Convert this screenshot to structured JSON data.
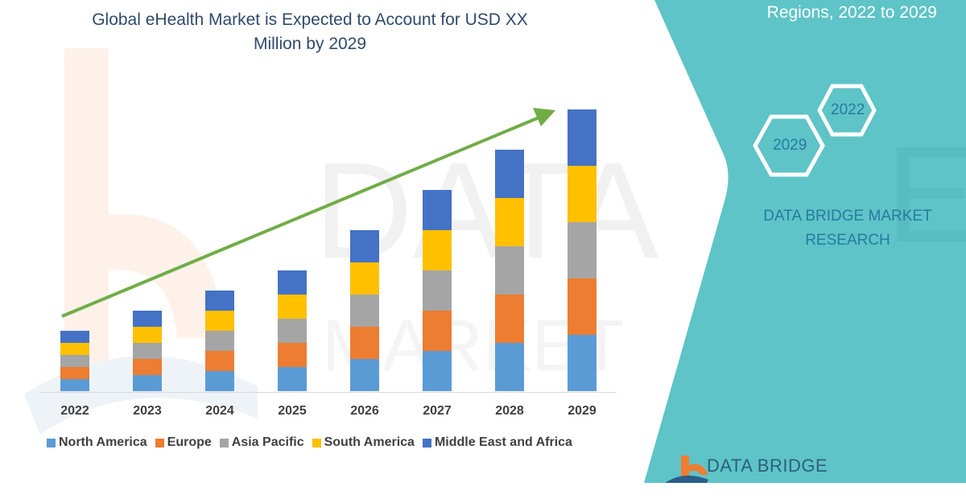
{
  "header": {
    "title_line1": "Global eHealth Market is Expected to Account for USD XX",
    "title_line2": "Million by 2029",
    "right_heading": "Regions, 2022 to 2029"
  },
  "hexagons": {
    "left_label": "2029",
    "right_label": "2022"
  },
  "brand": {
    "name_line1": "DATA BRIDGE MARKET",
    "name_line2": "RESEARCH",
    "logo_text": "DATA BRIDGE"
  },
  "colors": {
    "teal": "#5ec4c8",
    "north_america": "#5b9bd5",
    "europe": "#ed7d31",
    "asia_pacific": "#a5a5a5",
    "south_america": "#ffc000",
    "middle_east_africa": "#4472c4",
    "arrow": "#70ad47"
  },
  "legend": [
    {
      "label": "North America",
      "color": "#5b9bd5"
    },
    {
      "label": "Europe",
      "color": "#ed7d31"
    },
    {
      "label": "Asia Pacific",
      "color": "#a5a5a5"
    },
    {
      "label": "South America",
      "color": "#ffc000"
    },
    {
      "label": "Middle East and Africa",
      "color": "#4472c4"
    }
  ],
  "chart_data": {
    "type": "bar",
    "stacked": true,
    "title": "Global eHealth Market is Expected to Account for USD XX Million by 2029",
    "xlabel": "",
    "ylabel": "",
    "categories": [
      "2022",
      "2023",
      "2024",
      "2025",
      "2026",
      "2027",
      "2028",
      "2029"
    ],
    "series": [
      {
        "name": "North America",
        "values": [
          15,
          20,
          25,
          30,
          40,
          50,
          60,
          70
        ]
      },
      {
        "name": "Europe",
        "values": [
          15,
          20,
          25,
          30,
          40,
          50,
          60,
          70
        ]
      },
      {
        "name": "Asia Pacific",
        "values": [
          15,
          20,
          25,
          30,
          40,
          50,
          60,
          70
        ]
      },
      {
        "name": "South America",
        "values": [
          15,
          20,
          25,
          30,
          40,
          50,
          60,
          70
        ]
      },
      {
        "name": "Middle East and Africa",
        "values": [
          15,
          20,
          25,
          30,
          40,
          50,
          60,
          70
        ]
      }
    ],
    "units_note": "relative units (no y-axis shown)",
    "grid": false,
    "legend_position": "bottom",
    "annotations": [
      "green upward trend arrow from 2022 to 2029"
    ]
  }
}
